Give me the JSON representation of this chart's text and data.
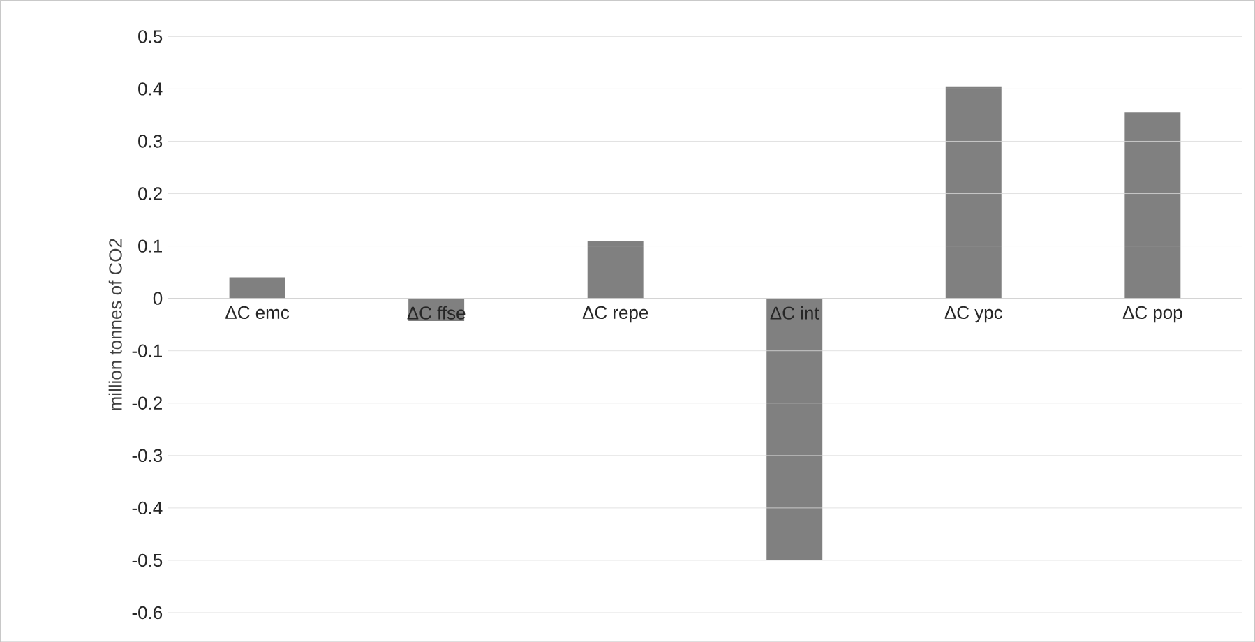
{
  "chart_data": {
    "type": "bar",
    "ylabel": "million tonnes of CO2",
    "categories": [
      "ΔC emc",
      "ΔC ffse",
      "ΔC repe",
      "ΔC int",
      "ΔC ypc",
      "ΔC pop"
    ],
    "values": [
      0.04,
      -0.043,
      0.11,
      -0.5,
      0.405,
      0.355
    ],
    "color": "#808080",
    "ylim": [
      -0.6,
      0.5
    ],
    "yticks": [
      0.5,
      0.4,
      0.3,
      0.2,
      0.1,
      0,
      -0.1,
      -0.2,
      -0.3,
      -0.4,
      -0.5,
      -0.6
    ],
    "grid": "y"
  }
}
